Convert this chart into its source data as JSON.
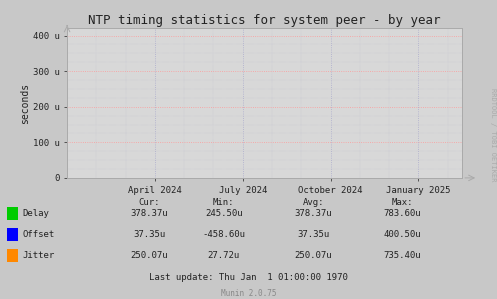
{
  "title": "NTP timing statistics for system peer - by year",
  "ylabel": "seconds",
  "bg_color": "#c8c8c8",
  "plot_bg_color": "#d8d8d8",
  "hgrid_color": "#ff9999",
  "vgrid_color": "#aaaacc",
  "spine_color": "#aaaaaa",
  "ylim": [
    0,
    420
  ],
  "yticks": [
    0,
    100,
    200,
    300,
    400
  ],
  "ytick_labels": [
    "0",
    "100 u",
    "200 u",
    "300 u",
    "400 u"
  ],
  "xtick_labels": [
    "April 2024",
    "July 2024",
    "October 2024",
    "January 2025"
  ],
  "xtick_positions": [
    3,
    6,
    9,
    12
  ],
  "xlim": [
    0,
    13.5
  ],
  "legend_items": [
    {
      "label": "Delay",
      "color": "#00cc00"
    },
    {
      "label": "Offset",
      "color": "#0000ff"
    },
    {
      "label": "Jitter",
      "color": "#ff8800"
    }
  ],
  "stats_headers": [
    "Cur:",
    "Min:",
    "Avg:",
    "Max:"
  ],
  "stats_rows": [
    [
      "378.37u",
      "245.50u",
      "378.37u",
      "783.60u"
    ],
    [
      "37.35u",
      "-458.60u",
      "37.35u",
      "400.50u"
    ],
    [
      "250.07u",
      "27.72u",
      "250.07u",
      "735.40u"
    ]
  ],
  "last_update": "Last update: Thu Jan  1 01:00:00 1970",
  "munin_version": "Munin 2.0.75",
  "watermark": "RRDTOOL / TOBI OETIKER",
  "font_color": "#222222",
  "title_fontsize": 9,
  "tick_fontsize": 6.5,
  "stats_fontsize": 6.5,
  "watermark_fontsize": 5,
  "ylabel_fontsize": 7
}
